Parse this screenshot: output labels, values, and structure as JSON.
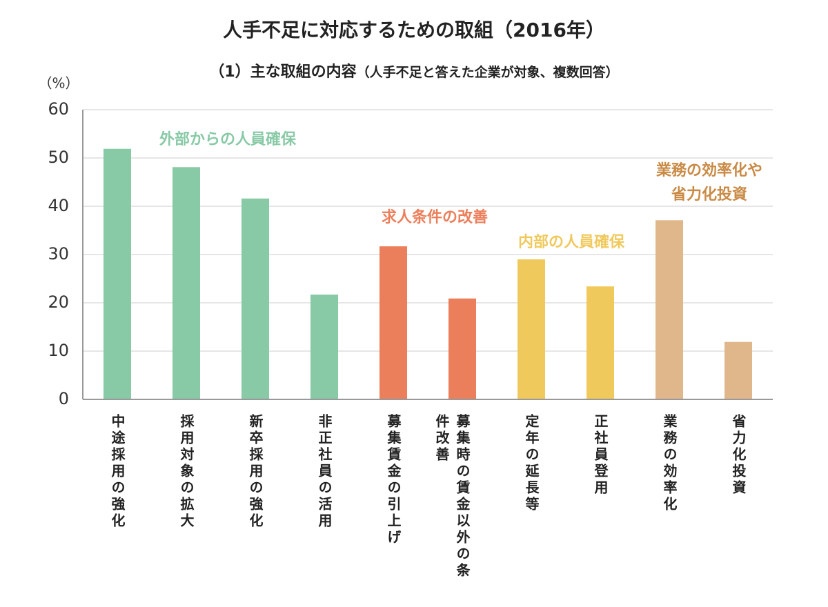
{
  "chart_data": {
    "type": "bar",
    "title": "人手不足に対応するための取組（2016年）",
    "subtitle": "（1）主な取組の内容",
    "subtitle_note": "（人手不足と答えた企業が対象、複数回答）",
    "y_unit": "（%）",
    "categories": [
      "中途採用の強化",
      "採用対象の拡大",
      "新卒採用の強化",
      "非正社員の活用",
      "募集賃金の引上げ",
      "募集時の賃金以外の条件改善",
      "定年の延長等",
      "正社員登用",
      "業務の効率化",
      "省力化投資"
    ],
    "values": [
      51.9,
      48.1,
      41.6,
      21.7,
      31.7,
      20.9,
      29.0,
      23.4,
      37.1,
      11.9
    ],
    "colors": [
      "#88c9a6",
      "#88c9a6",
      "#88c9a6",
      "#88c9a6",
      "#ec7f5b",
      "#ec7f5b",
      "#f0c95c",
      "#f0c95c",
      "#e0b78a",
      "#e0b78a"
    ],
    "annotations": [
      {
        "text": [
          "外部からの人員確保"
        ],
        "color": "#88c9a6"
      },
      {
        "text": [
          "求人条件の改善"
        ],
        "color": "#ec7f5b"
      },
      {
        "text": [
          "内部の人員確保"
        ],
        "color": "#f0c95c"
      },
      {
        "text": [
          "業務の効率化や",
          "省力化投資"
        ],
        "color": "#c98a45"
      }
    ],
    "ylim": [
      0,
      60
    ],
    "yticks": [
      0,
      10,
      20,
      30,
      40,
      50,
      60
    ],
    "grid": true
  }
}
